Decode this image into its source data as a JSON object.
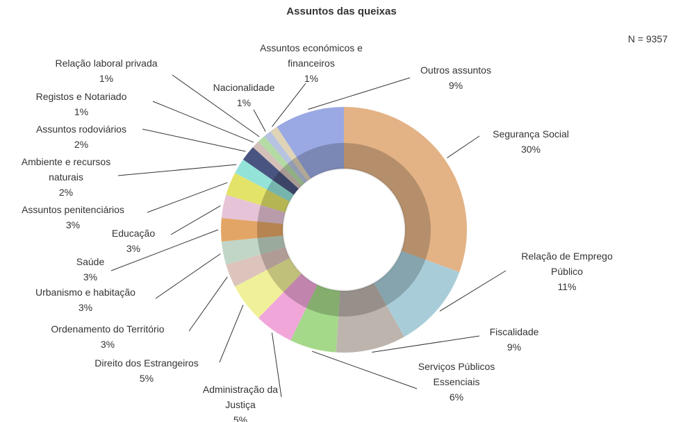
{
  "chart_data": {
    "type": "donut",
    "title": "Assuntos das queixas",
    "note": "N = 9357",
    "categories": [
      "Segurança Social",
      "Relação de Emprego Público",
      "Fiscalidade",
      "Serviços Públicos Essenciais",
      "Administração da Justiça",
      "Direito dos Estrangeiros",
      "Ordenamento do Território",
      "Urbanismo e habitação",
      "Saúde",
      "Educação",
      "Assuntos penitenciários",
      "Ambiente e recursos naturais",
      "Assuntos rodoviários",
      "Registos e Notariado",
      "Relação laboral privada",
      "Nacionalidade",
      "Assuntos económicos e financeiros",
      "Outros assuntos"
    ],
    "values": [
      30,
      11,
      9,
      6,
      5,
      5,
      3,
      3,
      3,
      3,
      3,
      2,
      2,
      1,
      1,
      1,
      1,
      9
    ],
    "value_labels": [
      "30%",
      "11%",
      "9%",
      "6%",
      "5%",
      "5%",
      "3%",
      "3%",
      "3%",
      "3%",
      "3%",
      "2%",
      "2%",
      "1%",
      "1%",
      "1%",
      "1%",
      "9%"
    ],
    "colors": [
      "#e3b386",
      "#a8cdd9",
      "#bdb5ad",
      "#a5d98a",
      "#f0a6d9",
      "#f0f09a",
      "#dcc3bb",
      "#c1d6c6",
      "#e3a565",
      "#e6c3d6",
      "#e3e36a",
      "#93e3d9",
      "#4a5480",
      "#d3c0b8",
      "#b4dba3",
      "#b7c3e0",
      "#dfd3b8",
      "#9aa9e3"
    ]
  }
}
